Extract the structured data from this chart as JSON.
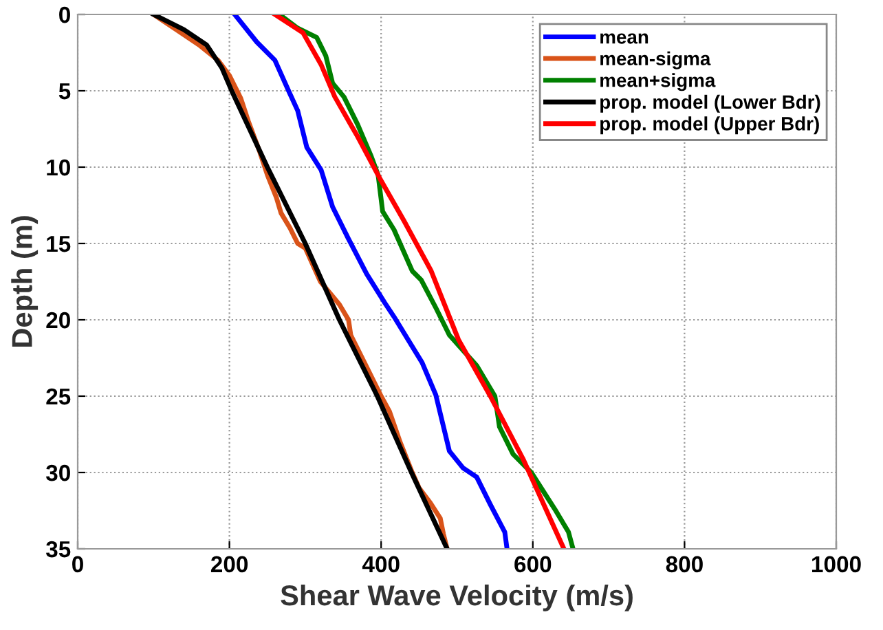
{
  "chart_data": {
    "type": "line",
    "xlabel": "Shear Wave Velocity (m/s)",
    "ylabel": "Depth (m)",
    "xlim": [
      0,
      1000
    ],
    "ylim": [
      35,
      0
    ],
    "xticks": [
      0,
      200,
      400,
      600,
      800,
      1000
    ],
    "yticks": [
      0,
      5,
      10,
      15,
      20,
      25,
      30,
      35
    ],
    "grid": true,
    "legend": "top right",
    "line_style": "solid",
    "marker": "none",
    "series": [
      {
        "name": "mean",
        "color": "#0000ff",
        "x": [
          207,
          236,
          260,
          278,
          290,
          302,
          321,
          336,
          357,
          381,
          405,
          417,
          454,
          472,
          490,
          508,
          526,
          544,
          563,
          566
        ],
        "values": [
          0,
          1.8,
          3,
          5,
          6.3,
          8.7,
          10.2,
          12.6,
          14.7,
          17,
          18.9,
          19.8,
          22.8,
          24.9,
          28.6,
          29.7,
          30.3,
          32.1,
          33.9,
          35
        ]
      },
      {
        "name": "mean-sigma",
        "color": "#d95319",
        "x": [
          100,
          130,
          160,
          185,
          200,
          215,
          225,
          240,
          250,
          262,
          268,
          280,
          290,
          300,
          320,
          345,
          357,
          360,
          380,
          400,
          411,
          425,
          441,
          450,
          465,
          478,
          482,
          487
        ],
        "values": [
          0,
          1,
          2,
          3,
          4,
          5.5,
          7,
          9,
          10.5,
          12,
          13,
          14,
          15,
          15.3,
          17.5,
          19,
          20,
          21,
          23,
          25,
          26,
          28,
          30,
          31,
          32,
          33,
          34,
          35
        ]
      },
      {
        "name": "mean+sigma",
        "color": "#008000",
        "x": [
          266,
          290,
          315,
          327,
          336,
          351,
          369,
          387,
          396,
          402,
          417,
          441,
          453,
          472,
          490,
          526,
          550,
          556,
          574,
          598,
          629,
          647,
          653
        ],
        "values": [
          0,
          0.9,
          1.5,
          2.7,
          4.5,
          5.4,
          7.2,
          9.3,
          10.5,
          12.9,
          14.1,
          16.8,
          17.4,
          19.2,
          21,
          23,
          25,
          27,
          28.8,
          30,
          32.4,
          33.9,
          35
        ]
      },
      {
        "name": "prop. model (Lower Bdr)",
        "color": "#000000",
        "x": [
          100,
          140,
          170,
          190,
          203,
          250,
          300,
          345,
          395,
          440,
          487
        ],
        "values": [
          0,
          1,
          2,
          3.5,
          5,
          10,
          15,
          20,
          25,
          30,
          35
        ]
      },
      {
        "name": "prop. model (Upper Bdr)",
        "color": "#ff0000",
        "x": [
          260,
          297,
          321,
          339,
          369,
          399,
          430,
          466,
          502,
          544,
          587,
          641
        ],
        "values": [
          0,
          1.2,
          3.3,
          5.4,
          8,
          10.8,
          13.5,
          16.8,
          21.3,
          25,
          29.1,
          35
        ]
      }
    ]
  }
}
